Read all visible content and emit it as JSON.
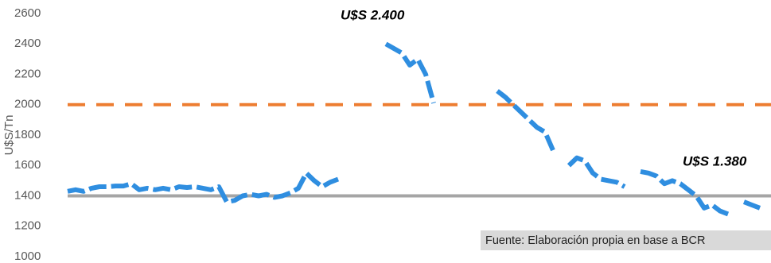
{
  "chart_data": {
    "type": "line",
    "y_label": "U$S/Tn",
    "ylim": [
      1000,
      2600
    ],
    "yticks": [
      1000,
      1200,
      1400,
      1600,
      1800,
      2000,
      2200,
      2400,
      2600
    ],
    "series": [
      {
        "color": "#2f8ee0",
        "values": [
          1430,
          1440,
          1430,
          1450,
          1460,
          1460,
          1465,
          1465,
          1480,
          1440,
          1450,
          1440,
          1450,
          1440,
          1460,
          1455,
          1460,
          1450,
          1440,
          1460,
          1360,
          1370,
          1400,
          1410,
          1400,
          1410,
          1390,
          1400,
          1420,
          1450,
          1550,
          1500,
          1460,
          1490,
          1510,
          null,
          null,
          null,
          null,
          null,
          2400,
          2370,
          2340,
          2260,
          2300,
          2200,
          2010,
          null,
          2090,
          null,
          null,
          2080,
          null,
          null,
          2090,
          2050,
          2000,
          1950,
          1900,
          1850,
          1820,
          1700,
          null,
          1600,
          1650,
          1630,
          1550,
          1510,
          1500,
          1490,
          1460,
          null,
          1560,
          1550,
          1530,
          1480,
          1500,
          1480,
          1440,
          1400,
          1320,
          1340,
          1300,
          1280,
          null,
          1360,
          1340,
          1320
        ]
      }
    ],
    "reference_lines": [
      {
        "value": 2000,
        "color": "#ed7d31",
        "style": "dashed"
      },
      {
        "value": 1400,
        "color": "#a5a5a5",
        "style": "solid"
      }
    ],
    "annotations": [
      "U$S 2.400",
      "U$S 1.380"
    ],
    "source": "Fuente: Elaboración propia en base a BCR"
  }
}
